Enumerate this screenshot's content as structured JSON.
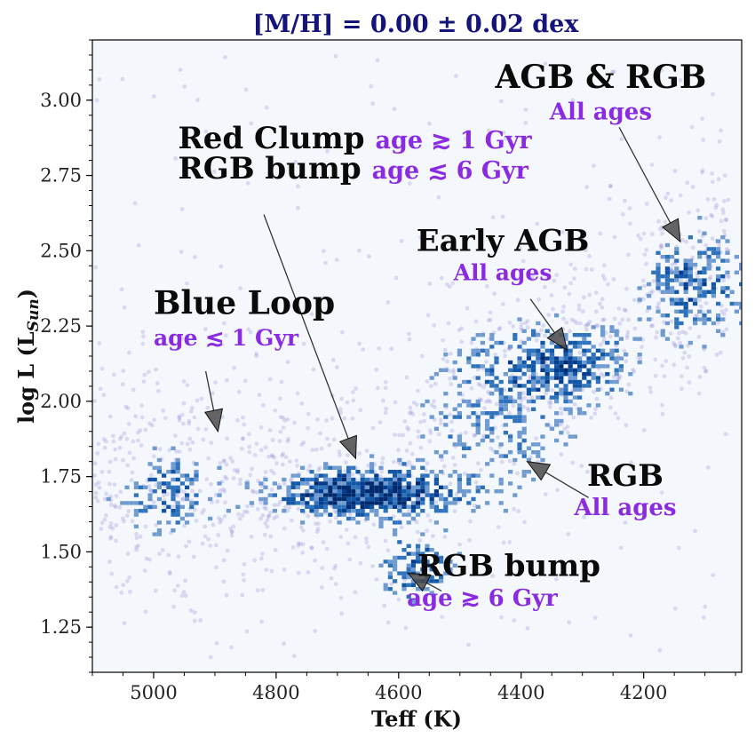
{
  "chart_data": {
    "type": "heatmap",
    "title": "[M/H] = 0.00 ± 0.02 dex",
    "xlabel": "Teff (K)",
    "ylabel_main": "log L (L",
    "ylabel_sub": "Sun",
    "ylabel_close": ")",
    "xlim": [
      5100,
      4040
    ],
    "ylim": [
      1.1,
      3.2
    ],
    "xticks": [
      5000,
      4800,
      4600,
      4400,
      4200
    ],
    "yticks": [
      1.25,
      1.5,
      1.75,
      2.0,
      2.25,
      2.5,
      2.75,
      3.0
    ],
    "xtick_labels": [
      "5000",
      "4800",
      "4600",
      "4400",
      "4200"
    ],
    "ytick_labels": [
      "1.25",
      "1.50",
      "1.75",
      "2.00",
      "2.25",
      "2.50",
      "2.75",
      "3.00"
    ],
    "background_color": "#f4f8fd",
    "scatter_color": "#7b68c8",
    "density_colors": [
      "#6f9bd1",
      "#2f73bd",
      "#1257a6",
      "#063d8e",
      "#002a6e"
    ],
    "density_regions": [
      {
        "name": "red clump",
        "teff": 4660,
        "logL": 1.7,
        "sigma_teff": 95,
        "sigma_logL": 0.055,
        "weight": 1.0
      },
      {
        "name": "blue loop",
        "teff": 4980,
        "logL": 1.7,
        "sigma_teff": 55,
        "sigma_logL": 0.09,
        "weight": 0.45
      },
      {
        "name": "rgb bump",
        "teff": 4575,
        "logL": 1.45,
        "sigma_teff": 40,
        "sigma_logL": 0.07,
        "weight": 0.55
      },
      {
        "name": "early agb",
        "teff": 4330,
        "logL": 2.13,
        "sigma_teff": 80,
        "sigma_logL": 0.08,
        "weight": 0.55
      },
      {
        "name": "rgb",
        "teff": 4450,
        "logL": 1.95,
        "sigma_teff": 90,
        "sigma_logL": 0.18,
        "weight": 0.3
      },
      {
        "name": "upper giants",
        "teff": 4120,
        "logL": 2.4,
        "sigma_teff": 60,
        "sigma_logL": 0.12,
        "weight": 0.5
      }
    ],
    "annotations": [
      {
        "id": "agb-rgb",
        "title": "AGB & RGB",
        "subtitle": "All ages",
        "text_teff": 4270,
        "text_logL": 3.04,
        "arrow_from": [
          4240,
          2.91
        ],
        "arrow_to": [
          4140,
          2.53
        ],
        "title_size": 36,
        "sub_size": 26
      },
      {
        "id": "red-clump",
        "title": "Red Clump",
        "subtitle": "age ≳ 1 Gyr",
        "title2": "RGB bump",
        "subtitle2": "age ≲ 6 Gyr",
        "text_teff": 4960,
        "text_logL": 2.74,
        "arrow_from": [
          4820,
          2.62
        ],
        "arrow_to": [
          4670,
          1.81
        ],
        "title_size": 34,
        "sub_size": 27
      },
      {
        "id": "early-agb",
        "title": "Early AGB",
        "subtitle": "All ages",
        "text_teff": 4430,
        "text_logL": 2.5,
        "arrow_from": [
          4385,
          2.34
        ],
        "arrow_to": [
          4325,
          2.17
        ],
        "title_size": 34,
        "sub_size": 25
      },
      {
        "id": "blue-loop",
        "title": "Blue Loop",
        "subtitle": "age ≲ 1 Gyr",
        "text_teff": 5000,
        "text_logL": 2.29,
        "arrow_from": [
          4915,
          2.1
        ],
        "arrow_to": [
          4895,
          1.9
        ],
        "title_size": 36,
        "sub_size": 25
      },
      {
        "id": "rgb",
        "title": "RGB",
        "subtitle": "All ages",
        "text_teff": 4230,
        "text_logL": 1.72,
        "arrow_from": [
          4290,
          1.68
        ],
        "arrow_to": [
          4390,
          1.8
        ],
        "title_size": 34,
        "sub_size": 26
      },
      {
        "id": "rgb-bump",
        "title": "RGB bump",
        "subtitle": "age ≳ 6 Gyr",
        "text_teff": 4420,
        "text_logL": 1.42,
        "arrow_from": [
          4530,
          1.37
        ],
        "arrow_to": [
          4585,
          1.43
        ],
        "title_size": 34,
        "sub_size": 26
      }
    ]
  }
}
